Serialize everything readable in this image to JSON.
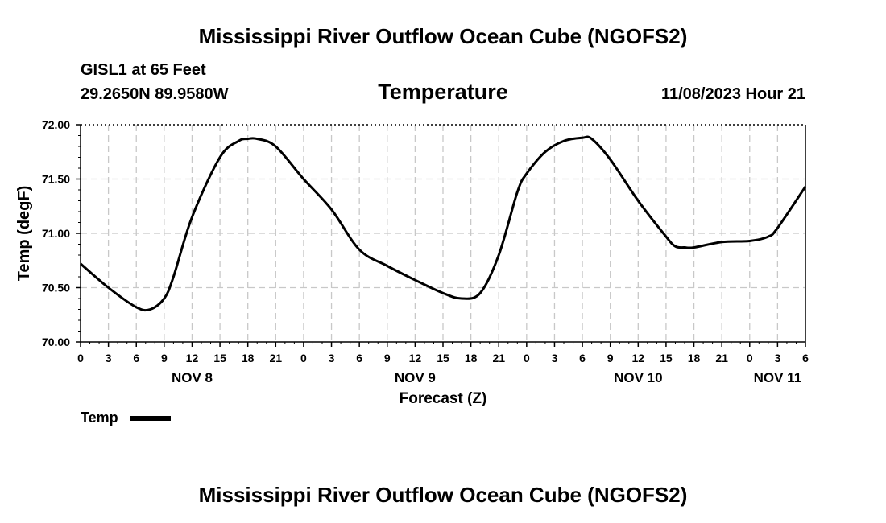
{
  "header": {
    "title": "Mississippi River Outflow Ocean Cube (NGOFS2)",
    "station": "GISL1 at 65 Feet",
    "coords": "29.2650N  89.9580W",
    "variable": "Temperature",
    "datetime": "11/08/2023 Hour 21"
  },
  "footer": {
    "title": "Mississippi River Outflow Ocean Cube (NGOFS2)"
  },
  "legend": {
    "label": "Temp",
    "color": "#000000"
  },
  "chart_data": {
    "type": "line",
    "title": "Temperature",
    "xlabel": "Forecast (Z)",
    "ylabel": "Temp (degF)",
    "ylim": [
      70.0,
      72.0
    ],
    "xlim": [
      0,
      78
    ],
    "x_unit": "hours since NOV 8 00Z",
    "grid": true,
    "yticks": [
      "70.00",
      "70.50",
      "71.00",
      "71.50",
      "72.00"
    ],
    "ytick_values": [
      70.0,
      70.5,
      71.0,
      71.5,
      72.0
    ],
    "xticks": [
      {
        "h": 0,
        "label": "0"
      },
      {
        "h": 3,
        "label": "3"
      },
      {
        "h": 6,
        "label": "6"
      },
      {
        "h": 9,
        "label": "9"
      },
      {
        "h": 12,
        "label": "12"
      },
      {
        "h": 15,
        "label": "15"
      },
      {
        "h": 18,
        "label": "18"
      },
      {
        "h": 21,
        "label": "21"
      },
      {
        "h": 24,
        "label": "0"
      },
      {
        "h": 27,
        "label": "3"
      },
      {
        "h": 30,
        "label": "6"
      },
      {
        "h": 33,
        "label": "9"
      },
      {
        "h": 36,
        "label": "12"
      },
      {
        "h": 39,
        "label": "15"
      },
      {
        "h": 42,
        "label": "18"
      },
      {
        "h": 45,
        "label": "21"
      },
      {
        "h": 48,
        "label": "0"
      },
      {
        "h": 51,
        "label": "3"
      },
      {
        "h": 54,
        "label": "6"
      },
      {
        "h": 57,
        "label": "9"
      },
      {
        "h": 60,
        "label": "12"
      },
      {
        "h": 63,
        "label": "15"
      },
      {
        "h": 66,
        "label": "18"
      },
      {
        "h": 69,
        "label": "21"
      },
      {
        "h": 72,
        "label": "0"
      },
      {
        "h": 75,
        "label": "3"
      },
      {
        "h": 78,
        "label": "6"
      }
    ],
    "day_labels": [
      {
        "h": 12,
        "label": "NOV 8"
      },
      {
        "h": 36,
        "label": "NOV 9"
      },
      {
        "h": 60,
        "label": "NOV 10"
      },
      {
        "h": 75,
        "label": "NOV 11"
      }
    ],
    "series": [
      {
        "name": "Temp",
        "x": [
          0,
          3,
          6,
          7.5,
          9,
          10,
          12,
          15,
          17,
          18,
          19,
          21,
          24,
          27,
          30,
          33,
          36,
          39,
          41,
          43,
          45,
          47,
          48,
          50,
          52,
          54,
          55,
          57,
          60,
          63,
          64,
          65,
          66,
          69,
          72,
          74,
          75,
          78
        ],
        "values": [
          70.72,
          70.5,
          70.32,
          70.3,
          70.4,
          70.6,
          71.15,
          71.7,
          71.85,
          71.87,
          71.87,
          71.8,
          71.5,
          71.22,
          70.85,
          70.7,
          70.57,
          70.45,
          70.4,
          70.45,
          70.8,
          71.38,
          71.55,
          71.75,
          71.85,
          71.88,
          71.87,
          71.68,
          71.3,
          70.97,
          70.88,
          70.87,
          70.87,
          70.92,
          70.93,
          70.97,
          71.05,
          71.43
        ]
      }
    ]
  }
}
